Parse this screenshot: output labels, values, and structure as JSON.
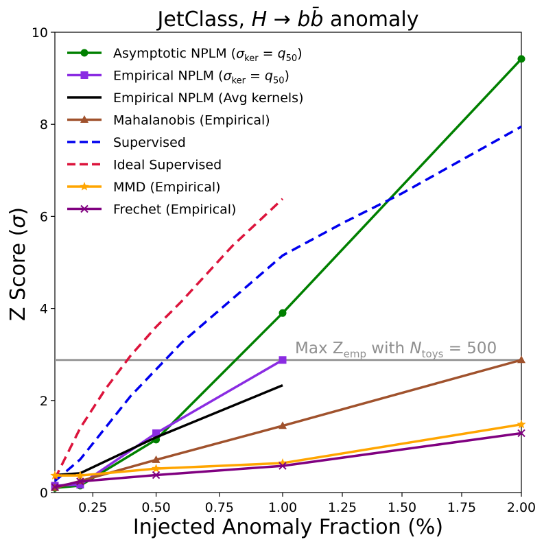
{
  "chart_data": {
    "type": "line",
    "title_main": "JetClass, ",
    "title_math": "H → bb̄",
    "title_tail": " anomaly",
    "xlabel": "Injected Anomaly Fraction (%)",
    "ylabel_main": "Z Score (",
    "ylabel_sym": "σ",
    "ylabel_tail": ")",
    "ylim": [
      0,
      10
    ],
    "yticks": [
      "0",
      "2",
      "4",
      "6",
      "8",
      "10"
    ],
    "x_categories": [
      "0.25",
      "0.50",
      "0.75",
      "1.00",
      "1.25",
      "1.50",
      "1.75",
      "2.00"
    ],
    "x_note": "x axis is piecewise: 0.1-1.00 linear, then 1.00-2.00 compressed",
    "legend_position": "upper-left",
    "grid": false,
    "hline": {
      "value": 2.88,
      "color": "#999999",
      "label_pre": "Max Z",
      "label_sub": "emp",
      "label_mid": " with ",
      "label_n": "N",
      "label_nsub": "toys",
      "label_tail": " = 500"
    },
    "series": [
      {
        "key": "asym",
        "name_pre": "Asymptotic NPLM (",
        "name_sigma": "σ",
        "name_sub": "ker",
        "name_eq": " = ",
        "name_q": "q",
        "name_qsub": "50",
        "name_post": ")",
        "color": "#008000",
        "dash": "",
        "marker": "circle",
        "x": [
          0.1,
          0.2,
          0.5,
          1.0,
          2.0
        ],
        "y": [
          0.1,
          0.15,
          1.15,
          3.9,
          9.42
        ]
      },
      {
        "key": "emp",
        "name_pre": "Empirical NPLM (",
        "name_sigma": "σ",
        "name_sub": "ker",
        "name_eq": " = ",
        "name_q": "q",
        "name_qsub": "50",
        "name_post": ")",
        "color": "#8a2be2",
        "dash": "",
        "marker": "square",
        "x": [
          0.1,
          0.2,
          0.5,
          1.0
        ],
        "y": [
          0.15,
          0.17,
          1.29,
          2.88
        ]
      },
      {
        "key": "avg",
        "name_pre": "Empirical NPLM (Avg kernels)",
        "color": "#000000",
        "dash": "",
        "marker": "none",
        "x": [
          0.1,
          0.2,
          0.5,
          1.0
        ],
        "y": [
          0.38,
          0.42,
          1.2,
          2.33
        ]
      },
      {
        "key": "maha",
        "name_pre": "Mahalanobis (Empirical)",
        "color": "#a0522d",
        "dash": "",
        "marker": "triangle",
        "x": [
          0.1,
          0.2,
          0.5,
          1.0,
          2.0
        ],
        "y": [
          0.1,
          0.25,
          0.71,
          1.45,
          2.88
        ]
      },
      {
        "key": "sup",
        "name_pre": "Supervised",
        "color": "#0000ee",
        "dash": "14,8",
        "marker": "none",
        "x": [
          0.1,
          0.2,
          0.4,
          0.6,
          1.0,
          1.25,
          1.5,
          2.0
        ],
        "y": [
          0.25,
          0.72,
          2.1,
          3.25,
          5.15,
          5.85,
          6.5,
          7.95
        ]
      },
      {
        "key": "ideal",
        "name_pre": "Ideal Supervised",
        "color": "#dc143c",
        "dash": "14,8",
        "marker": "none",
        "x": [
          0.1,
          0.2,
          0.3,
          0.4,
          0.5,
          0.6,
          0.8,
          1.0
        ],
        "y": [
          0.3,
          1.4,
          2.25,
          2.98,
          3.6,
          4.15,
          5.35,
          6.38
        ]
      },
      {
        "key": "mmd",
        "name_pre": "MMD (Empirical)",
        "color": "#ffa500",
        "dash": "",
        "marker": "star",
        "x": [
          0.1,
          0.2,
          0.5,
          1.0,
          2.0
        ],
        "y": [
          0.37,
          0.37,
          0.52,
          0.64,
          1.48
        ]
      },
      {
        "key": "frechet",
        "name_pre": "Frechet (Empirical)",
        "color": "#800080",
        "dash": "",
        "marker": "x",
        "x": [
          0.1,
          0.2,
          0.5,
          1.0,
          2.0
        ],
        "y": [
          0.12,
          0.24,
          0.38,
          0.58,
          1.29
        ]
      }
    ]
  }
}
